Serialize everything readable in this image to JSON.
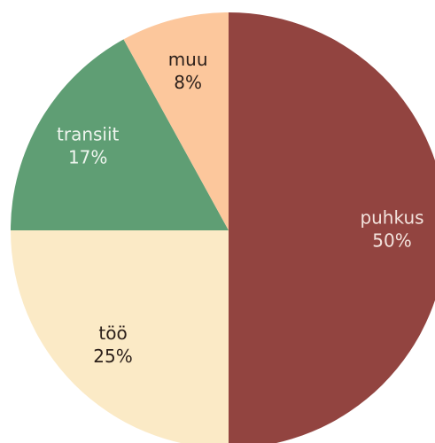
{
  "chart_data": {
    "type": "pie",
    "categories": [
      "puhkus",
      "töö",
      "transiit",
      "muu"
    ],
    "values": [
      50,
      25,
      17,
      8
    ],
    "value_labels": [
      "50%",
      "25%",
      "17%",
      "8%"
    ],
    "colors": [
      "#924440",
      "#fbeac6",
      "#5f9e74",
      "#fcc79c"
    ]
  }
}
